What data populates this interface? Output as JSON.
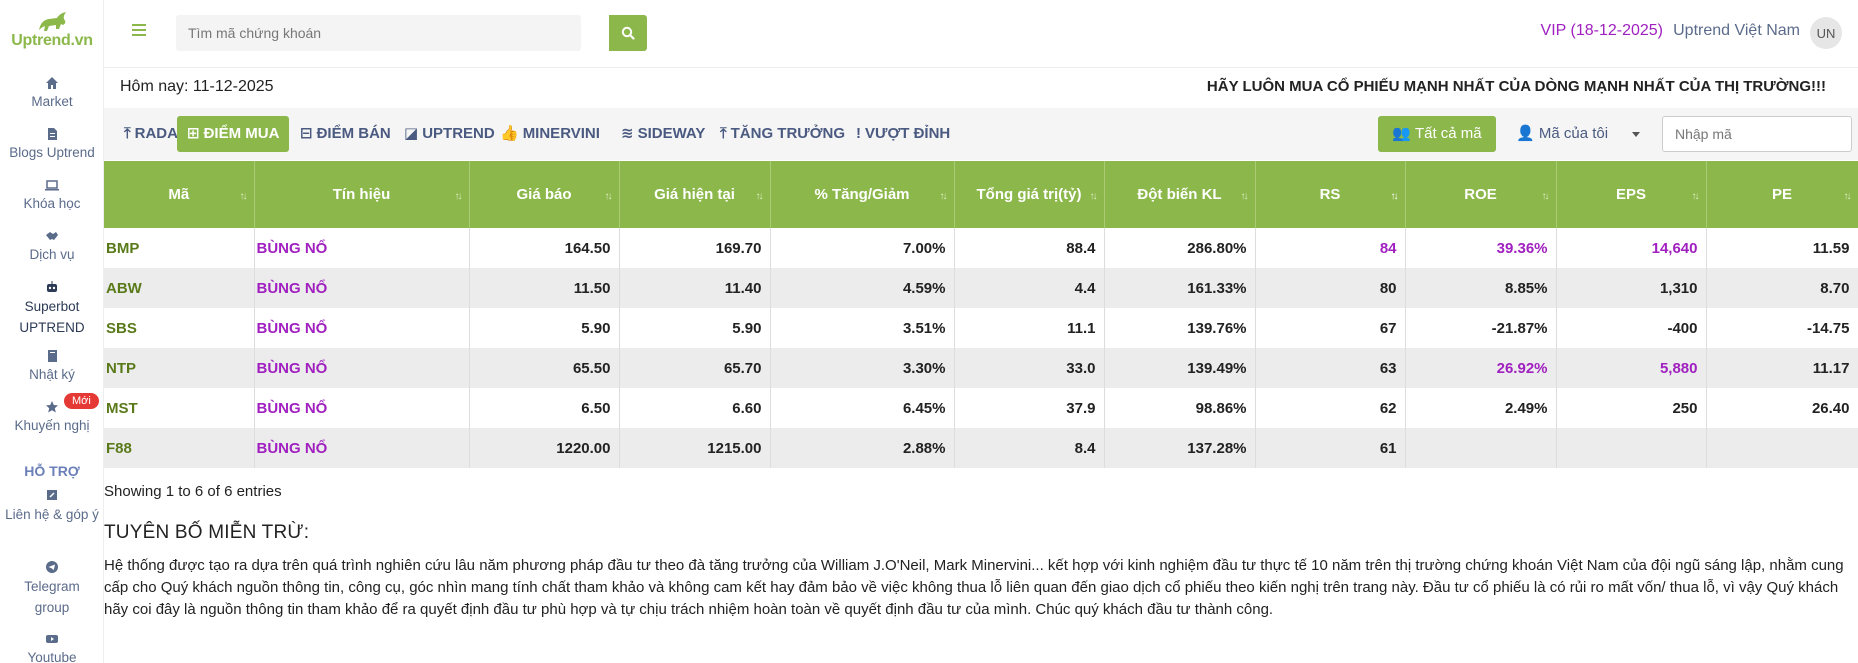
{
  "sidebar": {
    "logo_text": "Uptrend.vn",
    "items": [
      {
        "label": "Market",
        "icon": "home-icon"
      },
      {
        "label": "Blogs Uptrend",
        "icon": "document-icon"
      },
      {
        "label": "Khóa học",
        "icon": "laptop-icon"
      },
      {
        "label": "Dịch vụ",
        "icon": "handshake-icon"
      },
      {
        "label": "Superbot UPTREND",
        "icon": "robot-icon"
      },
      {
        "label": "Nhật ký",
        "icon": "book-icon"
      },
      {
        "label": "Khuyến nghị",
        "icon": "star-icon",
        "badge": "Mới"
      }
    ],
    "support_title": "HỖ TRỢ",
    "support_items": [
      {
        "label": "Liên hệ & góp ý",
        "icon": "edit-icon"
      },
      {
        "label": "Telegram group",
        "icon": "telegram-icon"
      },
      {
        "label": "Youtube",
        "icon": "youtube-icon"
      }
    ]
  },
  "header": {
    "search_placeholder": "Tìm mã chứng khoán",
    "vip": "VIP (18-12-2025)",
    "user_name": "Uptrend Việt Nam",
    "avatar": "UN"
  },
  "today_label": "Hôm nay: 11-12-2025",
  "slogan": "HÃY LUÔN MUA CỔ PHIẾU MẠNH NHẤT CỦA DÒNG MẠNH NHẤT CỦA THỊ TRƯỜNG!!!",
  "tabs": [
    {
      "label": "RADAR",
      "icon": "arrow-up-icon"
    },
    {
      "label": "ĐIỂM MUA",
      "icon": "plus-square-icon",
      "active": true
    },
    {
      "label": "ĐIỂM BÁN",
      "icon": "minus-square-icon"
    },
    {
      "label": "UPTREND",
      "icon": "chart-icon"
    },
    {
      "label": "MINERVINI",
      "icon": "thumbs-up-icon"
    },
    {
      "label": "SIDEWAY",
      "icon": "wave-icon"
    },
    {
      "label": "TĂNG TRƯỞNG",
      "icon": "arrow-up-icon"
    },
    {
      "label": "VƯỢT ĐỈNH",
      "icon": "exclamation-icon"
    }
  ],
  "filters": {
    "all_codes": "Tất cả mã",
    "my_codes": "Mã của tôi",
    "code_placeholder": "Nhập mã"
  },
  "table": {
    "headers": [
      "Mã",
      "Tín hiệu",
      "Giá báo",
      "Giá hiện tại",
      "% Tăng/Giảm",
      "Tổng giá trị(tỷ)",
      "Đột biến KL",
      "RS",
      "ROE",
      "EPS",
      "PE"
    ],
    "rows": [
      [
        "BMP",
        "BÙNG NỔ",
        "164.50",
        "169.70",
        "7.00%",
        "88.4",
        "286.80%",
        "84",
        "39.36%",
        "14,640",
        "11.59"
      ],
      [
        "ABW",
        "BÙNG NỔ",
        "11.50",
        "11.40",
        "4.59%",
        "4.4",
        "161.33%",
        "80",
        "8.85%",
        "1,310",
        "8.70"
      ],
      [
        "SBS",
        "BÙNG NỔ",
        "5.90",
        "5.90",
        "3.51%",
        "11.1",
        "139.76%",
        "67",
        "-21.87%",
        "-400",
        "-14.75"
      ],
      [
        "NTP",
        "BÙNG NỔ",
        "65.50",
        "65.70",
        "3.30%",
        "33.0",
        "139.49%",
        "63",
        "26.92%",
        "5,880",
        "11.17"
      ],
      [
        "MST",
        "BÙNG NỔ",
        "6.50",
        "6.60",
        "6.45%",
        "37.9",
        "98.86%",
        "62",
        "2.49%",
        "250",
        "26.40"
      ],
      [
        "F88",
        "BÙNG NỔ",
        "1220.00",
        "1215.00",
        "2.88%",
        "8.4",
        "137.28%",
        "61",
        "",
        "",
        ""
      ]
    ]
  },
  "showing": "Showing 1 to 6 of 6 entries",
  "disclaimer": {
    "title": "TUYÊN BỐ MIỄN TRỪ:",
    "text": "Hệ thống được tạo ra dựa trên quá trình nghiên cứu lâu năm phương pháp đầu tư theo đà tăng trưởng của William J.O'Neil, Mark Minervini... kết hợp với kinh nghiệm đầu tư thực tế 10 năm trên thị trường chứng khoán Việt Nam của đội ngũ sáng lập, nhằm cung cấp cho Quý khách nguồn thông tin, công cụ, góc nhìn mang tính chất tham khảo và không cam kết hay đảm bảo về việc không thua lỗ liên quan đến giao dịch cổ phiếu theo kiến nghị trên trang này. Đầu tư cổ phiếu là có rủi ro mất vốn/ thua lỗ, vì vậy Quý khách hãy coi đây là nguồn thông tin tham khảo để ra quyết định đầu tư phù hợp và tự chịu trách nhiệm hoàn toàn về quyết định đầu tư của mình. Chúc quý khách đầu tư thành công."
  },
  "colors": {
    "accent": "#8cb84b",
    "purple": "#a020c0",
    "symbol_green": "#5a7a1a",
    "sidebar_text": "#5b6b8a"
  }
}
